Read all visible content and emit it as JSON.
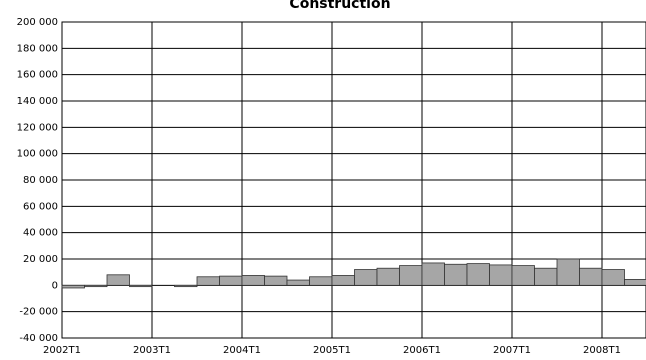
{
  "chart_data": {
    "type": "bar",
    "title": "Construction",
    "categories": [
      "2002T1",
      null,
      null,
      null,
      "2003T1",
      null,
      null,
      null,
      "2004T1",
      null,
      null,
      null,
      "2005T1",
      null,
      null,
      null,
      "2006T1",
      null,
      null,
      null,
      "2007T1",
      null,
      null,
      null,
      "2008T1",
      null
    ],
    "values": [
      -2000,
      -1000,
      8000,
      -1000,
      0,
      -1000,
      6500,
      7000,
      7500,
      7000,
      4000,
      6500,
      7500,
      12000,
      13000,
      15000,
      17000,
      16000,
      16500,
      15500,
      15000,
      13000,
      20000,
      13000,
      12000,
      4500
    ],
    "color": "#a6a6a6",
    "ylim": [
      -40000,
      200000
    ],
    "yticks": [
      {
        "value": -40000,
        "label": "-40 000"
      },
      {
        "value": -20000,
        "label": "-20 000"
      },
      0,
      {
        "value": 20000,
        "label": "20 000"
      },
      {
        "value": 40000,
        "label": "40 000"
      },
      {
        "value": 60000,
        "label": "60 000"
      },
      {
        "value": 80000,
        "label": "80 000"
      },
      {
        "value": 100000,
        "label": "100 000"
      },
      {
        "value": 120000,
        "label": "120 000"
      },
      {
        "value": 140000,
        "label": "140 000"
      },
      {
        "value": 160000,
        "label": "160 000"
      },
      {
        "value": 180000,
        "label": "180 000"
      },
      {
        "value": 200000,
        "label": "200 000"
      }
    ],
    "grid": true
  }
}
